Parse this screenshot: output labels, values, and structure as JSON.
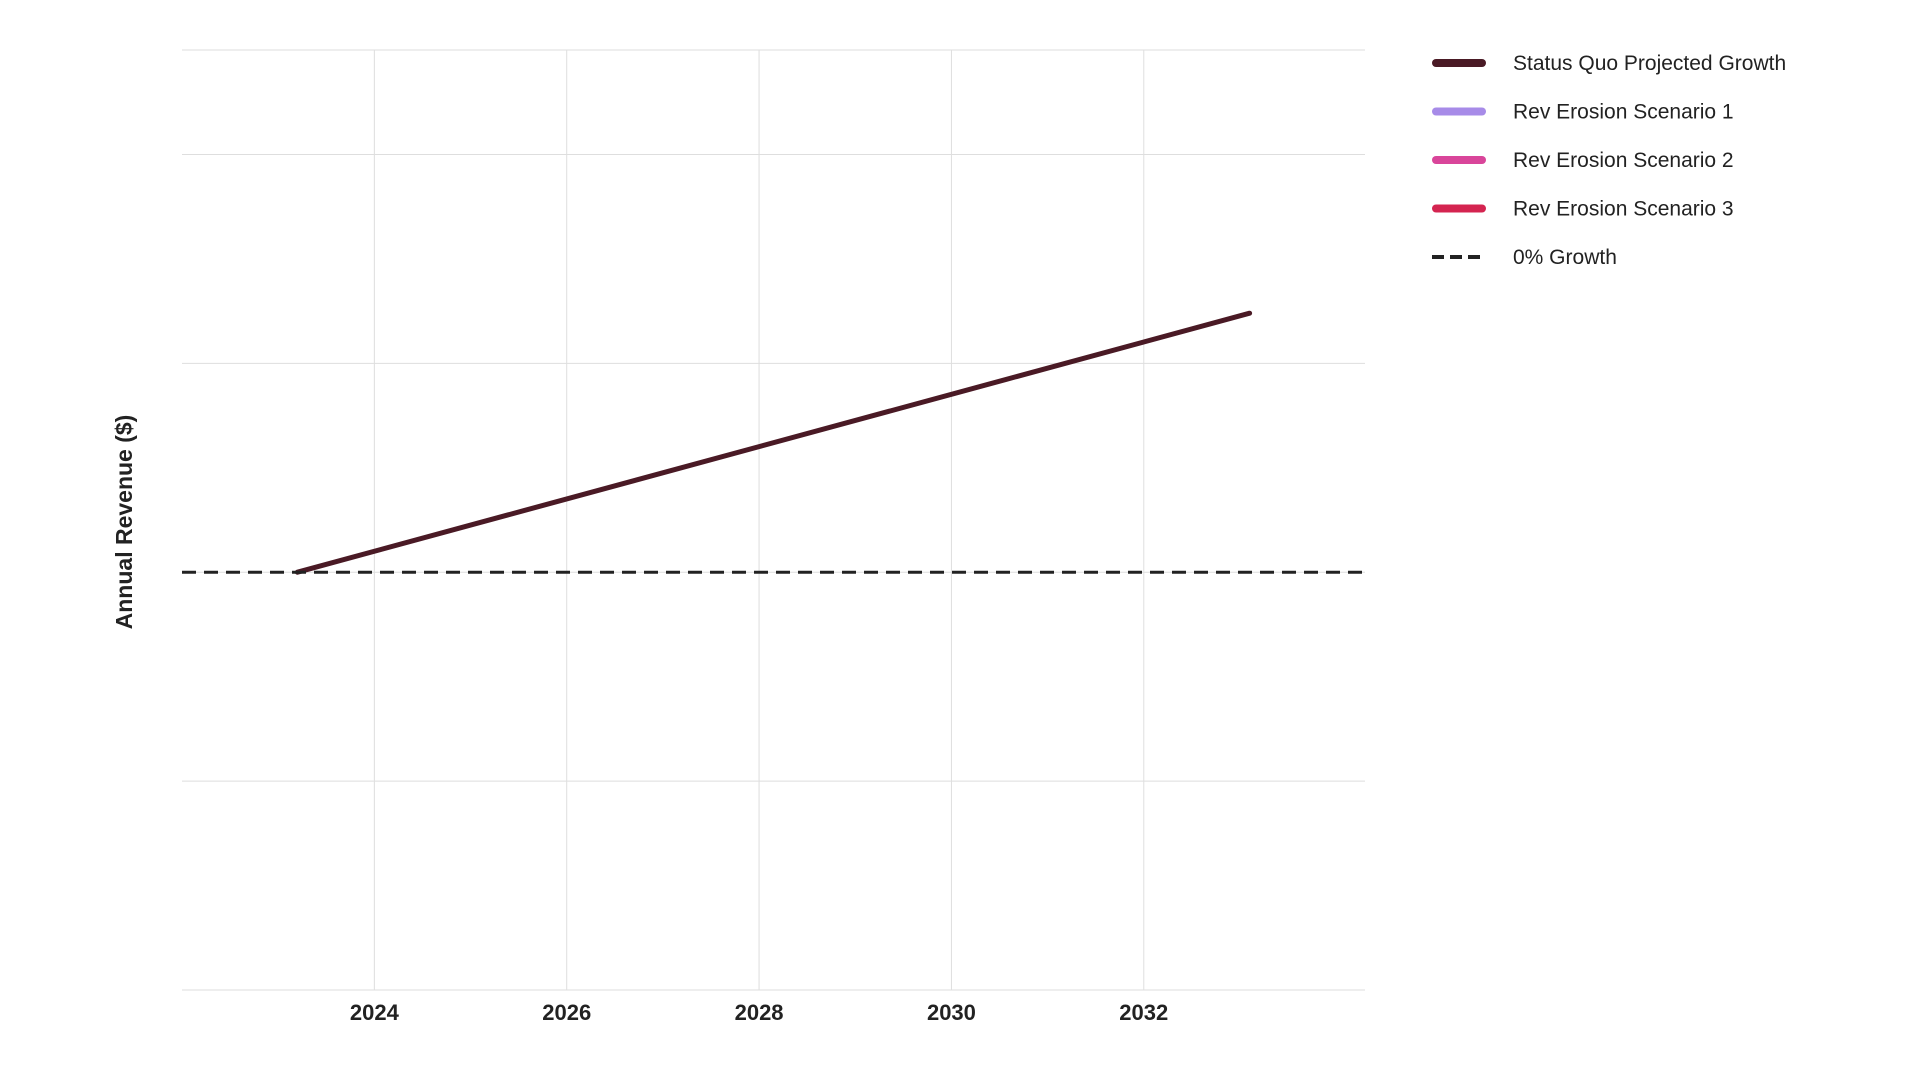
{
  "chart_data": {
    "type": "line",
    "title": "",
    "xlabel": "",
    "ylabel": "Annual Revenue ($)",
    "xlim": [
      2022.0,
      2034.3
    ],
    "ylim": [
      -1.0,
      1.25
    ],
    "x_ticks": [
      2024,
      2026,
      2028,
      2030,
      2032
    ],
    "y_ticks": [
      -1.0,
      -0.5,
      0.0,
      0.5,
      1.0
    ],
    "y_tick_labels_shown": false,
    "grid": true,
    "legend_position": "top-right, outside plot",
    "series": [
      {
        "name": "Status Quo Projected Growth",
        "color": "#4a1a25",
        "style": "solid",
        "x": [
          2023.2,
          2033.1
        ],
        "y": [
          0.0,
          0.62
        ]
      },
      {
        "name": "Rev Erosion Scenario 1",
        "color": "#a78be8",
        "style": "solid",
        "x": [],
        "y": []
      },
      {
        "name": "Rev Erosion Scenario 2",
        "color": "#d9459a",
        "style": "solid",
        "x": [],
        "y": []
      },
      {
        "name": "Rev Erosion Scenario 3",
        "color": "#d42450",
        "style": "solid",
        "x": [],
        "y": []
      },
      {
        "name": "0% Growth",
        "color": "#222222",
        "style": "dashed",
        "x": [
          2022.0,
          2034.3
        ],
        "y": [
          0.0,
          0.0
        ]
      }
    ]
  }
}
